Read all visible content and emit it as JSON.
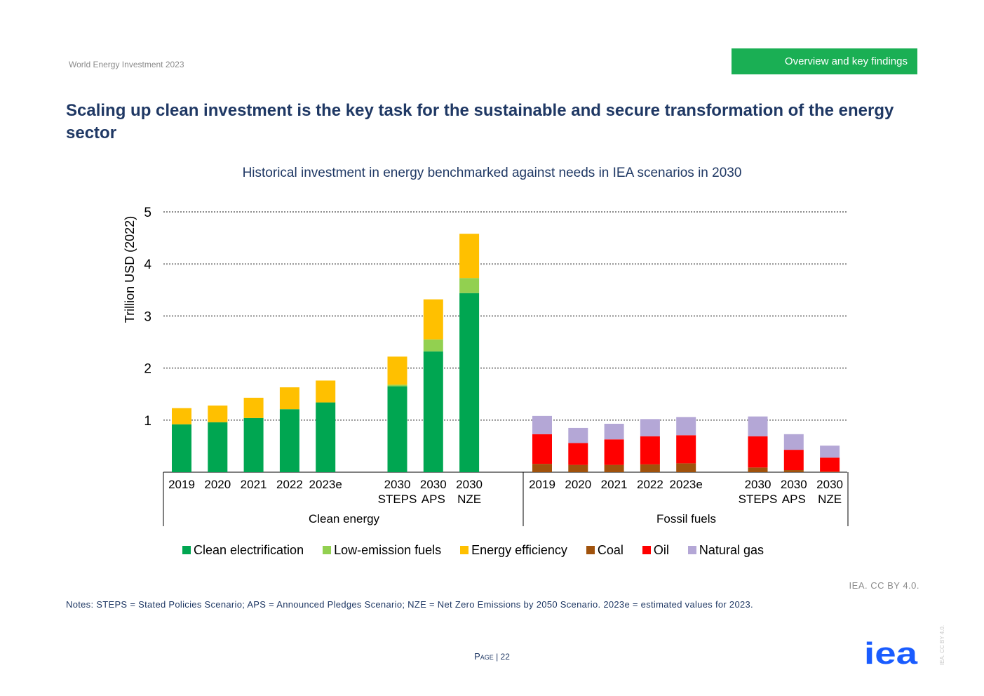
{
  "header": {
    "report_name": "World Energy Investment 2023",
    "section": "Overview and key findings"
  },
  "slide_title": "Scaling up clean investment is the key task for the sustainable and secure transformation of the energy sector",
  "footer": {
    "credit": "IEA. CC BY 4.0.",
    "notes": "Notes: STEPS = Stated Policies Scenario; APS = Announced Pledges Scenario; NZE = Net Zero Emissions by 2050 Scenario. 2023e = estimated values for 2023.",
    "page_word": "Page",
    "page_number": "| 22",
    "vertical_credit": "IEA. CC BY 4.0.",
    "logo_text": "iea"
  },
  "chart_data": {
    "type": "bar",
    "stacked": true,
    "title": "Historical investment in energy benchmarked against needs in IEA scenarios in 2030",
    "ylabel": "Trillion USD (2022)",
    "ylim": [
      0,
      5
    ],
    "yticks": [
      1,
      2,
      3,
      4,
      5
    ],
    "grid": true,
    "legend_position": "bottom",
    "groups": [
      {
        "name": "Clean energy",
        "categories": [
          {
            "label": [
              "2019"
            ],
            "values": {
              "Clean electrification": 0.92,
              "Low-emission fuels": 0.0,
              "Energy efficiency": 0.31
            }
          },
          {
            "label": [
              "2020"
            ],
            "values": {
              "Clean electrification": 0.96,
              "Low-emission fuels": 0.0,
              "Energy efficiency": 0.32
            }
          },
          {
            "label": [
              "2021"
            ],
            "values": {
              "Clean electrification": 1.04,
              "Low-emission fuels": 0.0,
              "Energy efficiency": 0.39
            }
          },
          {
            "label": [
              "2022"
            ],
            "values": {
              "Clean electrification": 1.21,
              "Low-emission fuels": 0.0,
              "Energy efficiency": 0.42
            }
          },
          {
            "label": [
              "2023e"
            ],
            "values": {
              "Clean electrification": 1.34,
              "Low-emission fuels": 0.0,
              "Energy efficiency": 0.42
            }
          },
          {
            "label": [
              "2030",
              "STEPS"
            ],
            "gap_before": true,
            "values": {
              "Clean electrification": 1.65,
              "Low-emission fuels": 0.03,
              "Energy efficiency": 0.54
            }
          },
          {
            "label": [
              "2030",
              "APS"
            ],
            "values": {
              "Clean electrification": 2.32,
              "Low-emission fuels": 0.23,
              "Energy efficiency": 0.77
            }
          },
          {
            "label": [
              "2030",
              "NZE"
            ],
            "values": {
              "Clean electrification": 3.44,
              "Low-emission fuels": 0.29,
              "Energy efficiency": 0.85
            }
          }
        ]
      },
      {
        "name": "Fossil fuels",
        "categories": [
          {
            "label": [
              "2019"
            ],
            "values": {
              "Coal": 0.16,
              "Oil": 0.57,
              "Natural gas": 0.35
            }
          },
          {
            "label": [
              "2020"
            ],
            "values": {
              "Coal": 0.14,
              "Oil": 0.42,
              "Natural gas": 0.29
            }
          },
          {
            "label": [
              "2021"
            ],
            "values": {
              "Coal": 0.14,
              "Oil": 0.49,
              "Natural gas": 0.3
            }
          },
          {
            "label": [
              "2022"
            ],
            "values": {
              "Coal": 0.15,
              "Oil": 0.54,
              "Natural gas": 0.33
            }
          },
          {
            "label": [
              "2023e"
            ],
            "values": {
              "Coal": 0.17,
              "Oil": 0.54,
              "Natural gas": 0.35
            }
          },
          {
            "label": [
              "2030",
              "STEPS"
            ],
            "gap_before": true,
            "values": {
              "Coal": 0.09,
              "Oil": 0.6,
              "Natural gas": 0.38
            }
          },
          {
            "label": [
              "2030",
              "APS"
            ],
            "values": {
              "Coal": 0.04,
              "Oil": 0.39,
              "Natural gas": 0.3
            }
          },
          {
            "label": [
              "2030",
              "NZE"
            ],
            "values": {
              "Coal": 0.01,
              "Oil": 0.27,
              "Natural gas": 0.23
            }
          }
        ]
      }
    ],
    "series": [
      {
        "name": "Clean electrification",
        "color": "#00a651"
      },
      {
        "name": "Low-emission fuels",
        "color": "#92d050"
      },
      {
        "name": "Energy efficiency",
        "color": "#ffc000"
      },
      {
        "name": "Coal",
        "color": "#a0520c"
      },
      {
        "name": "Oil",
        "color": "#ff0000"
      },
      {
        "name": "Natural gas",
        "color": "#b4a7d6"
      }
    ]
  },
  "colors": {
    "accent_green": "#1aaf54",
    "title_navy": "#1f3864",
    "logo_blue": "#1a5cff",
    "grid": "#a6a6a6"
  }
}
